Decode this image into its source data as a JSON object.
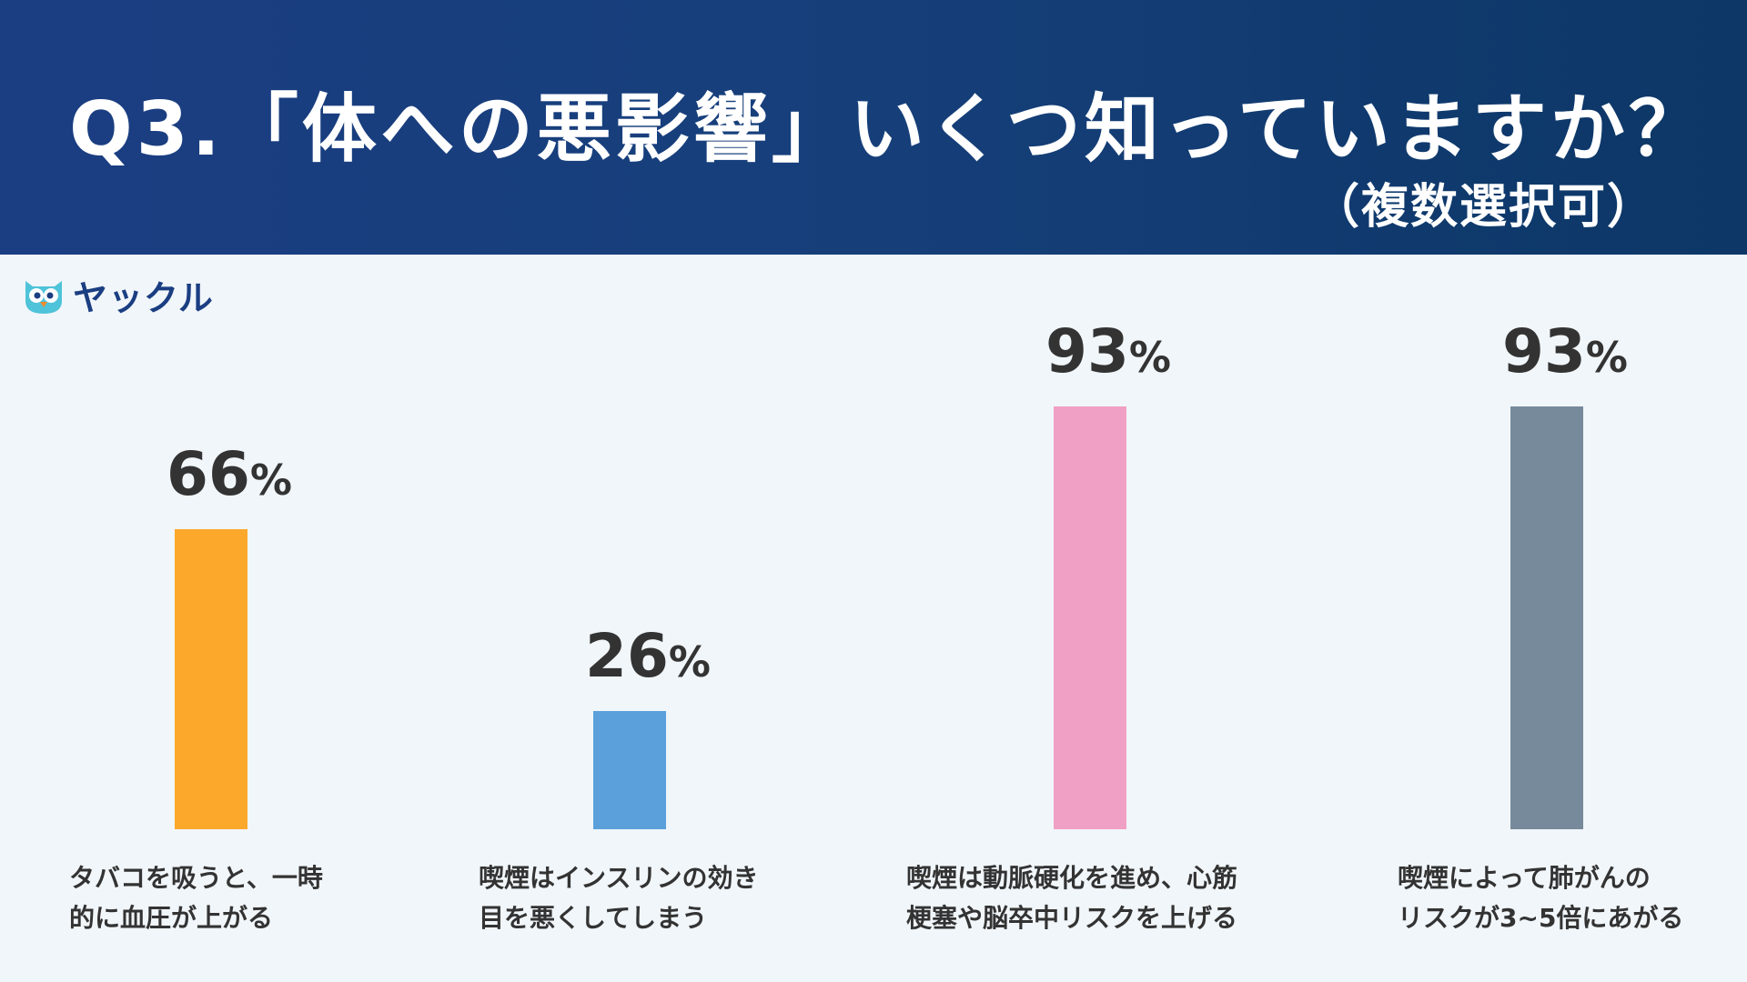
{
  "header": {
    "title": "Q3.「体への悪影響」いくつ知っていますか？",
    "subtitle": "（複数選択可）"
  },
  "logo": {
    "text": "ヤックル",
    "icon": "owl-icon"
  },
  "chart_data": {
    "type": "bar",
    "title": "Q3.「体への悪影響」いくつ知っていますか？",
    "subtitle": "（複数選択可）",
    "unit": "%",
    "categories": [
      "タバコを吸うと、一時的に血圧が上がる",
      "喫煙はインスリンの効き目を悪くしてしまう",
      "喫煙は動脈硬化を進め、心筋梗塞や脳卒中リスクを上げる",
      "喫煙によって肺がんのリスクが3~5倍にあがる"
    ],
    "category_lines": [
      [
        "タバコを吸うと、一時",
        "的に血圧が上がる"
      ],
      [
        "喫煙はインスリンの効き",
        "目を悪くしてしまう"
      ],
      [
        "喫煙は動脈硬化を進め、心筋",
        "梗塞や脳卒中リスクを上げる"
      ],
      [
        "喫煙によって肺がんの",
        "リスクが3~5倍にあがる"
      ]
    ],
    "values": [
      66,
      26,
      93,
      93
    ],
    "colors": [
      "#fca82b",
      "#5b9fdb",
      "#f1a0c5",
      "#778a9b"
    ],
    "ylim": [
      0,
      100
    ],
    "grid": false,
    "legend": "none"
  }
}
